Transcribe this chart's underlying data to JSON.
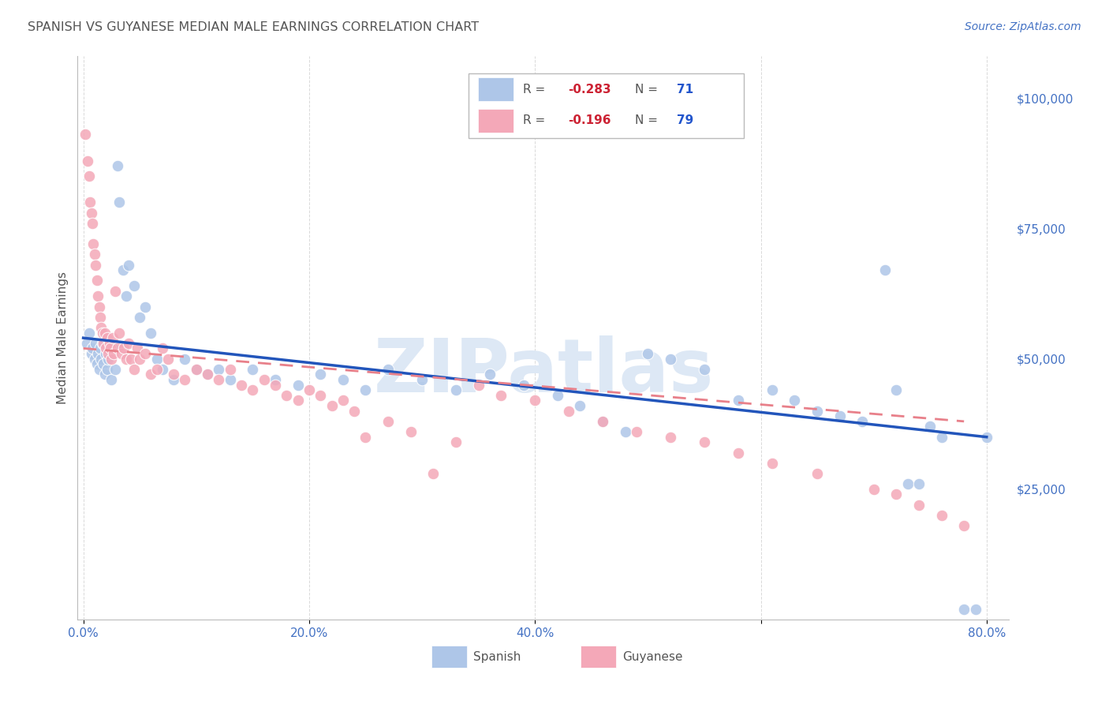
{
  "title": "SPANISH VS GUYANESE MEDIAN MALE EARNINGS CORRELATION CHART",
  "source": "Source: ZipAtlas.com",
  "ylabel": "Median Male Earnings",
  "xlabel_ticks": [
    "0.0%",
    "20.0%",
    "40.0%",
    "80.0%"
  ],
  "xlabel_vals": [
    0.0,
    0.2,
    0.4,
    0.8
  ],
  "ylabel_ticks": [
    "$25,000",
    "$50,000",
    "$75,000",
    "$100,000"
  ],
  "ylabel_vals": [
    25000,
    50000,
    75000,
    100000
  ],
  "xlim": [
    -0.005,
    0.82
  ],
  "ylim": [
    0,
    108000
  ],
  "background_color": "#ffffff",
  "grid_color": "#d0d0d0",
  "title_color": "#555555",
  "axis_label_color": "#555555",
  "tick_label_color": "#4472c4",
  "spanish_color": "#aec6e8",
  "guyanese_color": "#f4a8b8",
  "spanish_line_color": "#2255bb",
  "guyanese_line_color": "#e8808a",
  "watermark": "ZIPatlas",
  "watermark_color": "#dde8f5",
  "legend_R_color": "#cc2233",
  "legend_N_color": "#2255cc",
  "legend_text_color": "#555555",
  "spanish_x": [
    0.003,
    0.005,
    0.007,
    0.008,
    0.01,
    0.011,
    0.012,
    0.013,
    0.014,
    0.015,
    0.016,
    0.017,
    0.018,
    0.019,
    0.02,
    0.021,
    0.022,
    0.023,
    0.025,
    0.026,
    0.028,
    0.03,
    0.032,
    0.035,
    0.038,
    0.04,
    0.045,
    0.05,
    0.055,
    0.06,
    0.065,
    0.07,
    0.08,
    0.09,
    0.1,
    0.11,
    0.12,
    0.13,
    0.15,
    0.17,
    0.19,
    0.21,
    0.23,
    0.25,
    0.27,
    0.3,
    0.33,
    0.36,
    0.39,
    0.42,
    0.44,
    0.46,
    0.48,
    0.5,
    0.52,
    0.55,
    0.58,
    0.61,
    0.63,
    0.65,
    0.67,
    0.69,
    0.71,
    0.72,
    0.73,
    0.74,
    0.75,
    0.76,
    0.78,
    0.79,
    0.8
  ],
  "spanish_y": [
    53000,
    55000,
    51000,
    52000,
    50000,
    53000,
    49000,
    51000,
    48000,
    52000,
    50000,
    53000,
    49000,
    47000,
    51000,
    48000,
    50000,
    52000,
    46000,
    52000,
    48000,
    87000,
    80000,
    67000,
    62000,
    68000,
    64000,
    58000,
    60000,
    55000,
    50000,
    48000,
    46000,
    50000,
    48000,
    47000,
    48000,
    46000,
    48000,
    46000,
    45000,
    47000,
    46000,
    44000,
    48000,
    46000,
    44000,
    47000,
    45000,
    43000,
    41000,
    38000,
    36000,
    51000,
    50000,
    48000,
    42000,
    44000,
    42000,
    40000,
    39000,
    38000,
    67000,
    44000,
    26000,
    26000,
    37000,
    35000,
    2000,
    2000,
    35000
  ],
  "guyanese_x": [
    0.002,
    0.004,
    0.005,
    0.006,
    0.007,
    0.008,
    0.009,
    0.01,
    0.011,
    0.012,
    0.013,
    0.014,
    0.015,
    0.016,
    0.017,
    0.018,
    0.019,
    0.02,
    0.021,
    0.022,
    0.023,
    0.024,
    0.025,
    0.026,
    0.027,
    0.028,
    0.03,
    0.032,
    0.034,
    0.036,
    0.038,
    0.04,
    0.042,
    0.045,
    0.048,
    0.05,
    0.055,
    0.06,
    0.065,
    0.07,
    0.075,
    0.08,
    0.09,
    0.1,
    0.11,
    0.12,
    0.13,
    0.14,
    0.15,
    0.16,
    0.17,
    0.18,
    0.19,
    0.2,
    0.21,
    0.22,
    0.23,
    0.24,
    0.25,
    0.27,
    0.29,
    0.31,
    0.33,
    0.35,
    0.37,
    0.4,
    0.43,
    0.46,
    0.49,
    0.52,
    0.55,
    0.58,
    0.61,
    0.65,
    0.7,
    0.72,
    0.74,
    0.76,
    0.78
  ],
  "guyanese_y": [
    93000,
    88000,
    85000,
    80000,
    78000,
    76000,
    72000,
    70000,
    68000,
    65000,
    62000,
    60000,
    58000,
    56000,
    55000,
    53000,
    55000,
    52000,
    54000,
    51000,
    53000,
    52000,
    50000,
    54000,
    51000,
    63000,
    52000,
    55000,
    51000,
    52000,
    50000,
    53000,
    50000,
    48000,
    52000,
    50000,
    51000,
    47000,
    48000,
    52000,
    50000,
    47000,
    46000,
    48000,
    47000,
    46000,
    48000,
    45000,
    44000,
    46000,
    45000,
    43000,
    42000,
    44000,
    43000,
    41000,
    42000,
    40000,
    35000,
    38000,
    36000,
    28000,
    34000,
    45000,
    43000,
    42000,
    40000,
    38000,
    36000,
    35000,
    34000,
    32000,
    30000,
    28000,
    25000,
    24000,
    22000,
    20000,
    18000
  ],
  "spanish_trendline_x": [
    0.0,
    0.8
  ],
  "spanish_trendline_y": [
    54000,
    35000
  ],
  "guyanese_trendline_x": [
    0.0,
    0.78
  ],
  "guyanese_trendline_y": [
    52000,
    38000
  ]
}
